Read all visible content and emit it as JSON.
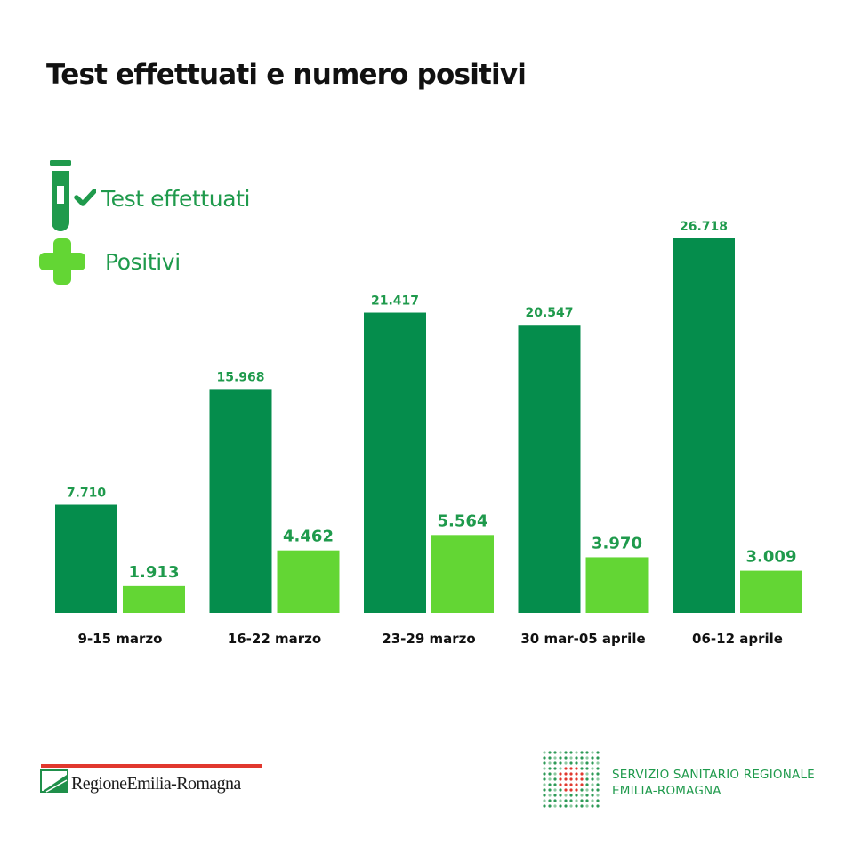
{
  "title": "Test effettuati e numero positivi",
  "legend": {
    "tests_label": "Test effettuati",
    "positives_label": "Positivi",
    "tests_icon": "test-tube-check-icon",
    "positives_icon": "plus-cross-icon"
  },
  "colors": {
    "tests": "#058d4c",
    "positives": "#63d634",
    "text_green": "#1f9a4c",
    "title": "#111111",
    "tick_label": "#111111",
    "logo_red": "#e1382e"
  },
  "chart_data": {
    "type": "bar",
    "title": "Test effettuati e numero positivi",
    "categories": [
      "9-15 marzo",
      "16-22 marzo",
      "23-29 marzo",
      "30 mar-05 aprile",
      "06-12 aprile"
    ],
    "series": [
      {
        "name": "Test effettuati",
        "values": [
          7710,
          15968,
          21417,
          20547,
          26718
        ],
        "labels": [
          "7.710",
          "15.968",
          "21.417",
          "20.547",
          "26.718"
        ]
      },
      {
        "name": "Positivi",
        "values": [
          1913,
          4462,
          5564,
          3970,
          3009
        ],
        "labels": [
          "1.913",
          "4.462",
          "5.564",
          "3.970",
          "3.009"
        ]
      }
    ],
    "xlabel": "",
    "ylabel": "",
    "ylim": [
      0,
      26718
    ],
    "grid": false,
    "legend_position": "top-left"
  },
  "footer": {
    "region_logo_text": "RegioneEmilia-Romagna",
    "service_line1": "SERVIZIO SANITARIO REGIONALE",
    "service_line2": "EMILIA-ROMAGNA",
    "service_logo_icon": "ssr-dot-grid-logo"
  }
}
